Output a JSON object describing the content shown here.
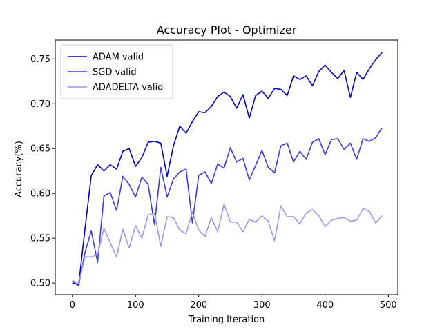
{
  "chart_data": {
    "type": "line",
    "title": "Accuracy Plot - Optimizer",
    "xlabel": "Training Iteration",
    "ylabel": "Accuracy(%)",
    "xlim": [
      -27,
      515
    ],
    "ylim": [
      0.487,
      0.771
    ],
    "xticks": [
      0,
      100,
      200,
      300,
      400,
      500
    ],
    "yticks": [
      0.5,
      0.55,
      0.6,
      0.65,
      0.7,
      0.75
    ],
    "ytick_labels": [
      "0.50",
      "0.55",
      "0.60",
      "0.65",
      "0.70",
      "0.75"
    ],
    "grid": false,
    "legend_position": "upper-left",
    "x": [
      0,
      10,
      20,
      30,
      40,
      50,
      60,
      70,
      80,
      90,
      100,
      110,
      120,
      130,
      140,
      150,
      160,
      170,
      180,
      190,
      200,
      210,
      220,
      230,
      240,
      250,
      260,
      270,
      280,
      290,
      300,
      310,
      320,
      330,
      340,
      350,
      360,
      370,
      380,
      390,
      400,
      410,
      420,
      430,
      440,
      450,
      460,
      470,
      480,
      490
    ],
    "series": [
      {
        "name": "ADAM valid",
        "color": "#0000cc",
        "values": [
          0.5,
          0.498,
          0.56,
          0.62,
          0.632,
          0.625,
          0.632,
          0.627,
          0.647,
          0.65,
          0.63,
          0.64,
          0.657,
          0.658,
          0.656,
          0.619,
          0.653,
          0.675,
          0.667,
          0.68,
          0.691,
          0.69,
          0.697,
          0.708,
          0.713,
          0.708,
          0.695,
          0.71,
          0.684,
          0.709,
          0.714,
          0.706,
          0.717,
          0.716,
          0.709,
          0.731,
          0.727,
          0.731,
          0.72,
          0.736,
          0.743,
          0.735,
          0.728,
          0.737,
          0.707,
          0.735,
          0.727,
          0.739,
          0.749,
          0.757
        ]
      },
      {
        "name": "SGD valid",
        "color": "#3a3ae6",
        "values": [
          0.502,
          0.497,
          0.534,
          0.558,
          0.523,
          0.597,
          0.601,
          0.581,
          0.619,
          0.61,
          0.596,
          0.618,
          0.61,
          0.565,
          0.629,
          0.596,
          0.616,
          0.624,
          0.627,
          0.567,
          0.62,
          0.624,
          0.611,
          0.633,
          0.628,
          0.651,
          0.635,
          0.639,
          0.615,
          0.631,
          0.648,
          0.629,
          0.623,
          0.653,
          0.656,
          0.635,
          0.647,
          0.638,
          0.657,
          0.661,
          0.643,
          0.66,
          0.661,
          0.649,
          0.656,
          0.638,
          0.661,
          0.658,
          0.662,
          0.673
        ]
      },
      {
        "name": "ADADELTA valid",
        "color": "#9999f0",
        "values": [
          0.503,
          0.5,
          0.529,
          0.529,
          0.532,
          0.561,
          0.545,
          0.529,
          0.56,
          0.539,
          0.564,
          0.55,
          0.576,
          0.578,
          0.541,
          0.574,
          0.573,
          0.559,
          0.555,
          0.579,
          0.559,
          0.552,
          0.573,
          0.557,
          0.588,
          0.568,
          0.568,
          0.557,
          0.571,
          0.568,
          0.575,
          0.569,
          0.547,
          0.586,
          0.574,
          0.574,
          0.566,
          0.578,
          0.582,
          0.575,
          0.563,
          0.57,
          0.572,
          0.573,
          0.569,
          0.57,
          0.583,
          0.58,
          0.567,
          0.575
        ]
      }
    ]
  }
}
